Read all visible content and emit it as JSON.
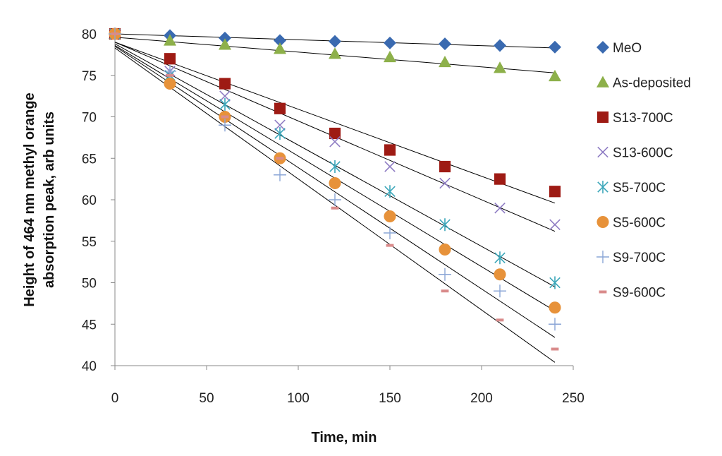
{
  "chart_data": {
    "type": "scatter",
    "title": "",
    "xlabel": "Time, min",
    "ylabel_lines": [
      "Height of 464 nm methyl orange",
      "absorption peak, arb units"
    ],
    "xlim": [
      0,
      250
    ],
    "ylim": [
      40,
      80
    ],
    "xticks": [
      "0",
      "50",
      "100",
      "150",
      "200",
      "250"
    ],
    "yticks": [
      "40",
      "45",
      "50",
      "55",
      "60",
      "65",
      "70",
      "75",
      "80"
    ],
    "grid": false,
    "legend_position": "right",
    "trendlines": true,
    "x": [
      0,
      30,
      60,
      90,
      120,
      150,
      180,
      210,
      240
    ],
    "series": [
      {
        "name": "MeO",
        "marker": "diamond",
        "color": "#3a6ab0",
        "values": [
          80,
          79.8,
          79.5,
          79.2,
          79.1,
          78.9,
          78.8,
          78.6,
          78.4
        ],
        "trend": [
          80,
          78.3
        ]
      },
      {
        "name": "As-deposited",
        "marker": "triangle",
        "color": "#8db04a",
        "values": [
          80,
          79.2,
          78.7,
          78.2,
          77.6,
          77.2,
          76.6,
          75.9,
          74.9
        ],
        "trend": [
          79.6,
          75.3
        ]
      },
      {
        "name": "S13-700C",
        "marker": "square",
        "color": "#9e1b14",
        "values": [
          80,
          77,
          74,
          71,
          68,
          66,
          64,
          62.5,
          61
        ],
        "trend": [
          79,
          59.6
        ]
      },
      {
        "name": "S13-600C",
        "marker": "x",
        "color": "#8e7cc3",
        "values": [
          80,
          75.5,
          72.5,
          69,
          67,
          64,
          62,
          59,
          57
        ],
        "trend": [
          79,
          56.2
        ]
      },
      {
        "name": "S5-700C",
        "marker": "asterisk",
        "color": "#3aa6b9",
        "values": [
          80,
          75,
          71.5,
          68,
          64,
          61,
          57,
          53,
          50
        ],
        "trend": [
          78.8,
          49.5
        ]
      },
      {
        "name": "S5-600C",
        "marker": "circle",
        "color": "#e7923a",
        "values": [
          80,
          74,
          70,
          65,
          62,
          58,
          54,
          51,
          47
        ],
        "trend": [
          78.6,
          46.6
        ]
      },
      {
        "name": "S9-700C",
        "marker": "plus",
        "color": "#8aa5d6",
        "values": [
          80,
          75.5,
          69,
          63,
          60,
          56,
          51,
          49,
          45
        ],
        "trend": [
          78.5,
          43.4
        ]
      },
      {
        "name": "S9-600C",
        "marker": "dash",
        "color": "#d98b8b",
        "values": [
          80,
          75,
          70,
          65,
          59,
          54.5,
          49,
          45.5,
          42
        ],
        "trend": [
          78.3,
          40.4
        ]
      }
    ]
  }
}
